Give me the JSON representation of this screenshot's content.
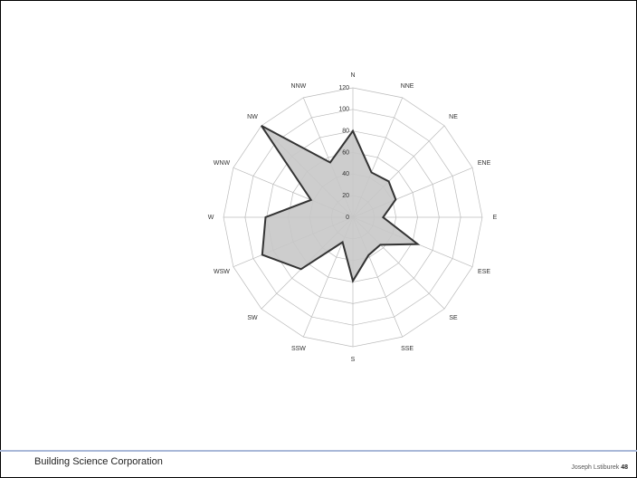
{
  "chart_data": {
    "type": "radar",
    "categories": [
      "N",
      "NNE",
      "NE",
      "ENE",
      "E",
      "ESE",
      "SE",
      "SSE",
      "S",
      "SSW",
      "SW",
      "WSW",
      "W",
      "WNW",
      "NW",
      "NNW"
    ],
    "values": [
      80,
      45,
      47,
      43,
      28,
      65,
      36,
      38,
      59,
      25,
      68,
      91,
      81,
      42,
      120,
      55
    ],
    "color": "#c8c8c8",
    "line_color": "#333333",
    "rlim": [
      0,
      120
    ],
    "rticks": [
      0,
      20,
      40,
      60,
      80,
      100,
      120
    ],
    "grid": true
  },
  "footer": {
    "organization": "Building Science Corporation",
    "author": "Joseph Lstiburek",
    "page": "48"
  }
}
